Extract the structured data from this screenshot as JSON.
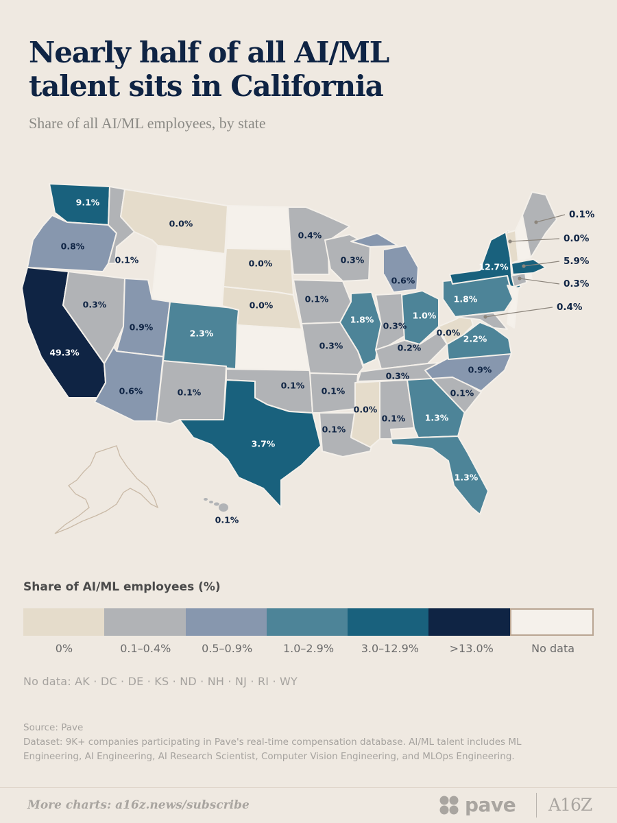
{
  "title": "Nearly half of all AI/ML talent sits in California",
  "subtitle": "Share of all AI/ML employees, by state",
  "colors": {
    "bucket_0": "#e5dccb",
    "bucket_1": "#b1b3b6",
    "bucket_2": "#8797ae",
    "bucket_3": "#4d8498",
    "bucket_4": "#19617d",
    "bucket_5": "#0f2444",
    "no_data": "#f5f1eb"
  },
  "map_data": {
    "states": [
      {
        "id": "WA",
        "value": "9.1%",
        "bucket": 4
      },
      {
        "id": "OR",
        "value": "0.8%",
        "bucket": 2
      },
      {
        "id": "CA",
        "value": "49.3%",
        "bucket": 5
      },
      {
        "id": "ID",
        "value": "0.1%",
        "bucket": 1
      },
      {
        "id": "NV",
        "value": "0.3%",
        "bucket": 1
      },
      {
        "id": "MT",
        "value": "0.0%",
        "bucket": 0
      },
      {
        "id": "WY",
        "value": "",
        "bucket": 6
      },
      {
        "id": "UT",
        "value": "0.9%",
        "bucket": 2
      },
      {
        "id": "AZ",
        "value": "0.6%",
        "bucket": 2
      },
      {
        "id": "CO",
        "value": "2.3%",
        "bucket": 3
      },
      {
        "id": "NM",
        "value": "0.1%",
        "bucket": 1
      },
      {
        "id": "ND",
        "value": "",
        "bucket": 6
      },
      {
        "id": "SD",
        "value": "0.0%",
        "bucket": 0
      },
      {
        "id": "NE",
        "value": "0.0%",
        "bucket": 0
      },
      {
        "id": "KS",
        "value": "",
        "bucket": 6
      },
      {
        "id": "OK",
        "value": "0.1%",
        "bucket": 1
      },
      {
        "id": "TX",
        "value": "3.7%",
        "bucket": 4
      },
      {
        "id": "MN",
        "value": "0.4%",
        "bucket": 1
      },
      {
        "id": "IA",
        "value": "0.1%",
        "bucket": 1
      },
      {
        "id": "MO",
        "value": "0.3%",
        "bucket": 1
      },
      {
        "id": "AR",
        "value": "0.1%",
        "bucket": 1
      },
      {
        "id": "LA",
        "value": "0.1%",
        "bucket": 1
      },
      {
        "id": "WI",
        "value": "0.3%",
        "bucket": 1
      },
      {
        "id": "IL",
        "value": "1.8%",
        "bucket": 3
      },
      {
        "id": "MI",
        "value": "0.6%",
        "bucket": 2
      },
      {
        "id": "IN",
        "value": "0.3%",
        "bucket": 1
      },
      {
        "id": "OH",
        "value": "1.0%",
        "bucket": 3
      },
      {
        "id": "KY",
        "value": "0.2%",
        "bucket": 1
      },
      {
        "id": "TN",
        "value": "0.3%",
        "bucket": 1
      },
      {
        "id": "MS",
        "value": "0.0%",
        "bucket": 0
      },
      {
        "id": "AL",
        "value": "0.1%",
        "bucket": 1
      },
      {
        "id": "GA",
        "value": "1.3%",
        "bucket": 3
      },
      {
        "id": "FL",
        "value": "1.3%",
        "bucket": 3
      },
      {
        "id": "SC",
        "value": "0.1%",
        "bucket": 1
      },
      {
        "id": "NC",
        "value": "0.9%",
        "bucket": 2
      },
      {
        "id": "VA",
        "value": "2.2%",
        "bucket": 3
      },
      {
        "id": "WV",
        "value": "0.0%",
        "bucket": 0
      },
      {
        "id": "PA",
        "value": "1.8%",
        "bucket": 3
      },
      {
        "id": "NY",
        "value": "12.7%",
        "bucket": 4
      },
      {
        "id": "NJ",
        "value": "",
        "bucket": 6
      },
      {
        "id": "DE",
        "value": "",
        "bucket": 6
      },
      {
        "id": "MD",
        "value": "0.4%",
        "bucket": 1
      },
      {
        "id": "CT",
        "value": "0.3%",
        "bucket": 1
      },
      {
        "id": "RI",
        "value": "",
        "bucket": 6
      },
      {
        "id": "MA",
        "value": "5.9%",
        "bucket": 4
      },
      {
        "id": "VT",
        "value": "0.0%",
        "bucket": 0
      },
      {
        "id": "NH",
        "value": "",
        "bucket": 6
      },
      {
        "id": "ME",
        "value": "0.1%",
        "bucket": 1
      },
      {
        "id": "AK",
        "value": "",
        "bucket": 6
      },
      {
        "id": "HI",
        "value": "0.1%",
        "bucket": 1
      }
    ]
  },
  "legend": {
    "title": "Share of AI/ML employees (%)",
    "labels": [
      "0%",
      "0.1–0.4%",
      "0.5–0.9%",
      "1.0–2.9%",
      "3.0–12.9%",
      ">13.0%",
      "No data"
    ]
  },
  "no_data_note": "No data: AK · DC · DE · KS · ND · NH · NJ · RI · WY",
  "source": "Source: Pave",
  "dataset": "Dataset: 9K+ companies participating in Pave's real-time compensation database. AI/ML talent includes ML Engineering, AI Engineering, AI Research Scientist, Computer Vision Engineering, and MLOps Engineering.",
  "footer": {
    "more_charts": "More charts: a16z.news/subscribe",
    "pave_logo": "pave",
    "a16z_logo": "A16Z"
  }
}
